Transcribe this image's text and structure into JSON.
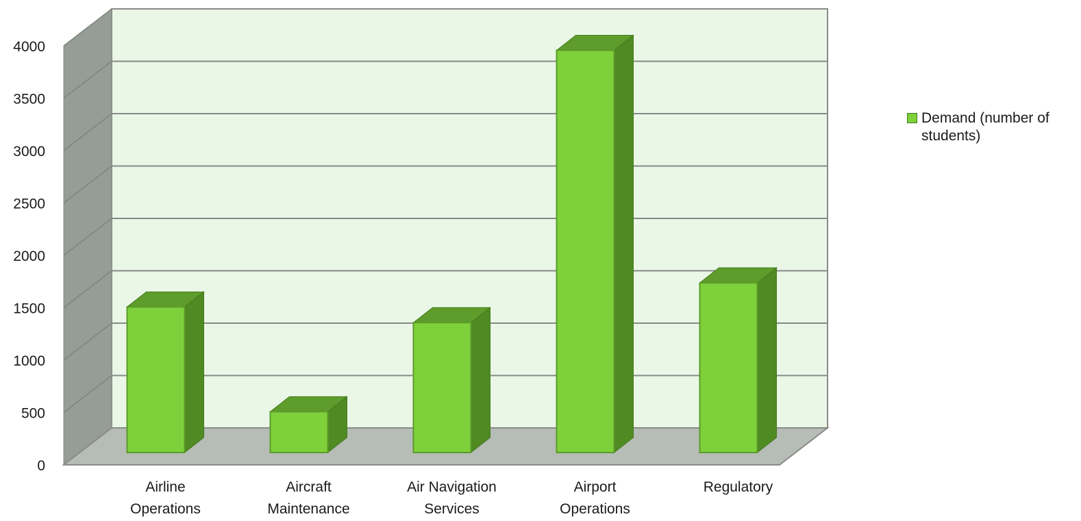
{
  "chart_data": {
    "type": "bar",
    "title": "",
    "xlabel": "",
    "ylabel": "",
    "categories": [
      [
        "Airline",
        "Operations"
      ],
      [
        "Aircraft",
        "Maintenance"
      ],
      [
        "Air Navigation",
        "Services"
      ],
      [
        "Airport",
        "Operations"
      ],
      [
        "Regulatory"
      ]
    ],
    "series": [
      {
        "name": "Demand (number of students)",
        "values": [
          1390,
          390,
          1240,
          3840,
          1620
        ],
        "color": "#7ed13b",
        "side_color": "#4f8a23",
        "top_color": "#5e9d2b"
      }
    ],
    "ylim": [
      0,
      4000
    ],
    "yticks": [
      0,
      500,
      1000,
      1500,
      2000,
      2500,
      3000,
      3500,
      4000
    ],
    "grid": true,
    "legend_position": "right",
    "colors": {
      "back_wall": "#eaf7e7",
      "side_wall": "#969c96",
      "floor": "#b6bcb6",
      "gridline": "#888888"
    }
  }
}
